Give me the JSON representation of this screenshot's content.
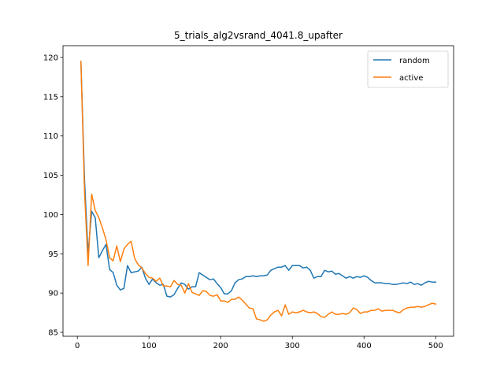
{
  "chart_data": {
    "type": "line",
    "title": "5_trials_alg2vsrand_4041.8_upafter",
    "xlabel": "",
    "ylabel": "",
    "xlim": [
      -20,
      525
    ],
    "ylim": [
      84.5,
      121.5
    ],
    "xticks": [
      0,
      100,
      200,
      300,
      400,
      500
    ],
    "yticks": [
      85,
      90,
      95,
      100,
      105,
      110,
      115,
      120
    ],
    "legend_position": "top-right",
    "grid": false,
    "series": [
      {
        "name": "random",
        "color": "#1f77b4",
        "x": [
          5,
          10,
          15,
          20,
          25,
          30,
          35,
          40,
          45,
          50,
          55,
          60,
          65,
          70,
          75,
          80,
          85,
          90,
          95,
          100,
          105,
          110,
          115,
          120,
          125,
          130,
          135,
          140,
          145,
          150,
          155,
          160,
          165,
          170,
          175,
          180,
          185,
          190,
          195,
          200,
          205,
          210,
          215,
          220,
          225,
          230,
          235,
          240,
          245,
          250,
          255,
          260,
          265,
          270,
          275,
          280,
          285,
          290,
          295,
          300,
          305,
          310,
          315,
          320,
          325,
          330,
          335,
          340,
          345,
          350,
          355,
          360,
          365,
          370,
          375,
          380,
          385,
          390,
          395,
          400,
          405,
          410,
          415,
          420,
          425,
          430,
          435,
          440,
          445,
          450,
          455,
          460,
          465,
          470,
          475,
          480,
          485,
          490,
          495,
          500
        ],
        "y": [
          119.5,
          104.5,
          95.0,
          100.4,
          99.6,
          94.5,
          95.4,
          96.2,
          93.0,
          92.6,
          91.0,
          90.4,
          90.6,
          93.5,
          92.6,
          92.7,
          92.8,
          93.3,
          91.9,
          91.1,
          91.8,
          91.3,
          91.0,
          91.1,
          89.6,
          89.5,
          89.8,
          90.6,
          91.3,
          91.1,
          90.5,
          90.8,
          90.8,
          92.6,
          92.3,
          92.0,
          91.7,
          91.8,
          91.2,
          90.7,
          89.9,
          89.9,
          90.3,
          91.3,
          91.7,
          91.8,
          92.1,
          92.1,
          92.2,
          92.1,
          92.2,
          92.2,
          92.3,
          92.9,
          93.1,
          93.3,
          93.3,
          93.5,
          92.9,
          93.5,
          93.5,
          93.5,
          93.2,
          93.3,
          92.9,
          91.9,
          92.1,
          92.1,
          92.9,
          92.7,
          92.8,
          92.4,
          92.5,
          92.2,
          91.9,
          92.1,
          91.9,
          92.1,
          92.0,
          92.2,
          92.0,
          91.6,
          91.3,
          91.3,
          91.3,
          91.2,
          91.2,
          91.1,
          91.1,
          91.2,
          91.3,
          91.2,
          91.4,
          91.1,
          91.2,
          91.0,
          91.3,
          91.5,
          91.4,
          91.4
        ]
      },
      {
        "name": "active",
        "color": "#ff7f0e",
        "x": [
          5,
          10,
          15,
          20,
          25,
          30,
          35,
          40,
          45,
          50,
          55,
          60,
          65,
          70,
          75,
          80,
          85,
          90,
          95,
          100,
          105,
          110,
          115,
          120,
          125,
          130,
          135,
          140,
          145,
          150,
          155,
          160,
          165,
          170,
          175,
          180,
          185,
          190,
          195,
          200,
          205,
          210,
          215,
          220,
          225,
          230,
          235,
          240,
          245,
          250,
          255,
          260,
          265,
          270,
          275,
          280,
          285,
          290,
          295,
          300,
          305,
          310,
          315,
          320,
          325,
          330,
          335,
          340,
          345,
          350,
          355,
          360,
          365,
          370,
          375,
          380,
          385,
          390,
          395,
          400,
          405,
          410,
          415,
          420,
          425,
          430,
          435,
          440,
          445,
          450,
          455,
          460,
          465,
          470,
          475,
          480,
          485,
          490,
          495,
          500
        ],
        "y": [
          119.5,
          103.0,
          93.5,
          102.6,
          100.5,
          99.6,
          98.3,
          96.8,
          94.5,
          94.1,
          96.0,
          94.0,
          95.6,
          96.2,
          96.6,
          94.4,
          93.6,
          93.2,
          92.5,
          92.0,
          91.9,
          91.5,
          91.9,
          90.9,
          90.9,
          90.8,
          91.6,
          91.1,
          91.0,
          90.0,
          91.2,
          90.1,
          89.9,
          89.7,
          90.3,
          90.2,
          89.7,
          89.6,
          89.8,
          89.0,
          89.0,
          88.8,
          89.2,
          89.2,
          89.5,
          89.1,
          88.6,
          88.1,
          88.0,
          86.7,
          86.6,
          86.4,
          86.6,
          87.2,
          87.6,
          87.8,
          87.1,
          88.5,
          87.3,
          87.6,
          87.5,
          87.6,
          87.8,
          87.6,
          87.5,
          87.6,
          87.4,
          87.0,
          86.9,
          87.3,
          87.6,
          87.3,
          87.3,
          87.4,
          87.3,
          87.5,
          88.1,
          87.9,
          87.4,
          87.6,
          87.6,
          87.8,
          87.8,
          88.0,
          87.7,
          87.8,
          87.8,
          87.8,
          87.6,
          87.5,
          87.9,
          88.1,
          88.2,
          88.2,
          88.3,
          88.2,
          88.3,
          88.5,
          88.7,
          88.6
        ]
      }
    ]
  }
}
